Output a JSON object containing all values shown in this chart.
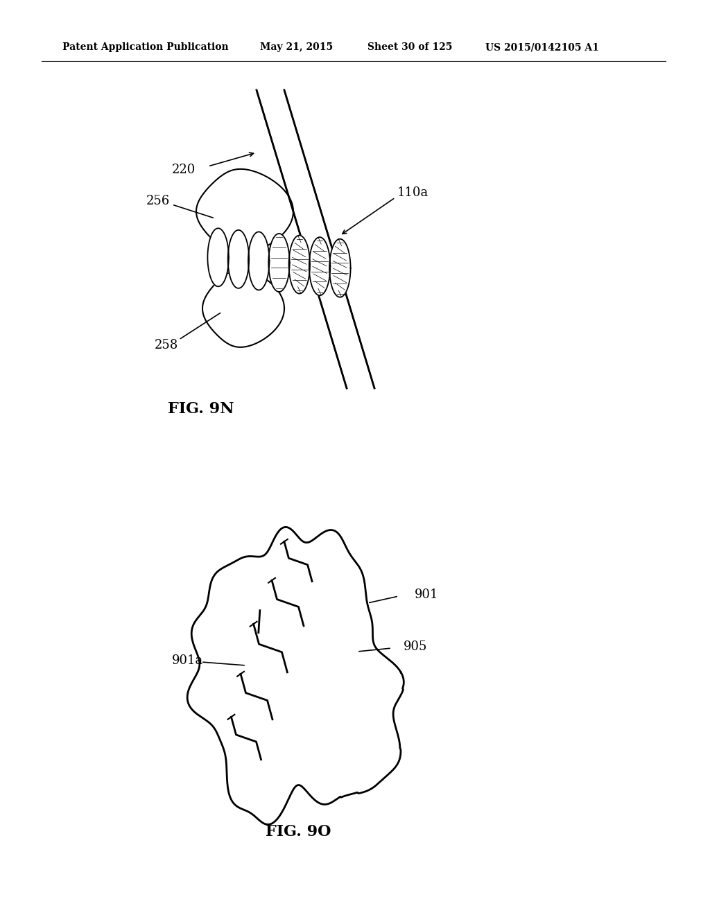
{
  "bg_color": "#ffffff",
  "header_text": "Patent Application Publication",
  "header_date": "May 21, 2015",
  "header_sheet": "Sheet 30 of 125",
  "header_patent": "US 2015/0142105 A1",
  "fig9n_label": "FIG. 9N",
  "fig9o_label": "FIG. 9O",
  "label_220": "220",
  "label_110a": "110a",
  "label_256": "256",
  "label_258": "258",
  "label_901": "901",
  "label_901a": "901a",
  "label_905": "905"
}
